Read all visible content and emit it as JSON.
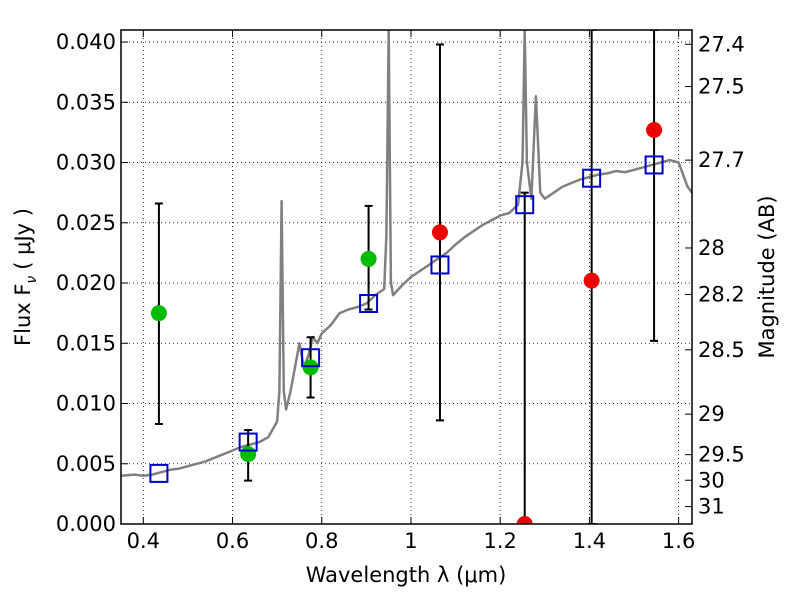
{
  "chart_data": {
    "type": "scatter",
    "xlabel": "Wavelength  λ (μm)",
    "ylabel": "Flux  F",
    "ylabel_sub": "ν",
    "ylabel_unit": "( μJy )",
    "y2label": "Magnitude (AB)",
    "xlim": [
      0.35,
      1.63
    ],
    "ylim": [
      0.0,
      0.041
    ],
    "grid": true,
    "x_ticks": [
      {
        "v": 0.4,
        "label": "0.4"
      },
      {
        "v": 0.6,
        "label": "0.6"
      },
      {
        "v": 0.8,
        "label": "0.8"
      },
      {
        "v": 1.0,
        "label": "1"
      },
      {
        "v": 1.2,
        "label": "1.2"
      },
      {
        "v": 1.4,
        "label": "1.4"
      },
      {
        "v": 1.6,
        "label": "1.6"
      }
    ],
    "y_ticks": [
      {
        "v": 0.0,
        "label": "0.000"
      },
      {
        "v": 0.005,
        "label": "0.005"
      },
      {
        "v": 0.01,
        "label": "0.010"
      },
      {
        "v": 0.015,
        "label": "0.015"
      },
      {
        "v": 0.02,
        "label": "0.020"
      },
      {
        "v": 0.025,
        "label": "0.025"
      },
      {
        "v": 0.03,
        "label": "0.030"
      },
      {
        "v": 0.035,
        "label": "0.035"
      },
      {
        "v": 0.04,
        "label": "0.040"
      }
    ],
    "mag_ticks": [
      {
        "mag": 27.4,
        "label": "27.4"
      },
      {
        "mag": 27.5,
        "label": "27.5"
      },
      {
        "mag": 27.7,
        "label": "27.7"
      },
      {
        "mag": 28.0,
        "label": "28"
      },
      {
        "mag": 28.2,
        "label": "28.2"
      },
      {
        "mag": 28.5,
        "label": "28.5"
      },
      {
        "mag": 29.0,
        "label": "29"
      },
      {
        "mag": 29.5,
        "label": "29.5"
      },
      {
        "mag": 30.0,
        "label": "30"
      },
      {
        "mag": 31.0,
        "label": "31"
      }
    ],
    "spectrum": {
      "color": "#808080",
      "points": [
        [
          0.35,
          0.004
        ],
        [
          0.38,
          0.0041
        ],
        [
          0.4,
          0.004
        ],
        [
          0.42,
          0.0041
        ],
        [
          0.44,
          0.0043
        ],
        [
          0.46,
          0.0045
        ],
        [
          0.48,
          0.0046
        ],
        [
          0.5,
          0.0048
        ],
        [
          0.52,
          0.005
        ],
        [
          0.54,
          0.0052
        ],
        [
          0.56,
          0.0055
        ],
        [
          0.58,
          0.0058
        ],
        [
          0.6,
          0.0061
        ],
        [
          0.62,
          0.0064
        ],
        [
          0.64,
          0.0066
        ],
        [
          0.66,
          0.0068
        ],
        [
          0.68,
          0.0072
        ],
        [
          0.7,
          0.0085
        ],
        [
          0.705,
          0.011
        ],
        [
          0.71,
          0.0268
        ],
        [
          0.715,
          0.011
        ],
        [
          0.72,
          0.0095
        ],
        [
          0.73,
          0.011
        ],
        [
          0.74,
          0.013
        ],
        [
          0.75,
          0.015
        ],
        [
          0.76,
          0.013
        ],
        [
          0.77,
          0.014
        ],
        [
          0.78,
          0.0155
        ],
        [
          0.79,
          0.015
        ],
        [
          0.8,
          0.0158
        ],
        [
          0.82,
          0.0165
        ],
        [
          0.84,
          0.0175
        ],
        [
          0.86,
          0.0178
        ],
        [
          0.88,
          0.018
        ],
        [
          0.9,
          0.0183
        ],
        [
          0.92,
          0.019
        ],
        [
          0.94,
          0.0195
        ],
        [
          0.945,
          0.024
        ],
        [
          0.95,
          0.041
        ],
        [
          0.955,
          0.02
        ],
        [
          0.96,
          0.019
        ],
        [
          0.98,
          0.0198
        ],
        [
          1.0,
          0.0205
        ],
        [
          1.02,
          0.021
        ],
        [
          1.04,
          0.0215
        ],
        [
          1.06,
          0.022
        ],
        [
          1.08,
          0.0225
        ],
        [
          1.1,
          0.0232
        ],
        [
          1.12,
          0.0238
        ],
        [
          1.14,
          0.0243
        ],
        [
          1.16,
          0.0248
        ],
        [
          1.18,
          0.0252
        ],
        [
          1.2,
          0.0256
        ],
        [
          1.22,
          0.0258
        ],
        [
          1.24,
          0.0265
        ],
        [
          1.25,
          0.03
        ],
        [
          1.255,
          0.041
        ],
        [
          1.26,
          0.03
        ],
        [
          1.27,
          0.027
        ],
        [
          1.28,
          0.0355
        ],
        [
          1.29,
          0.0275
        ],
        [
          1.3,
          0.027
        ],
        [
          1.32,
          0.0275
        ],
        [
          1.34,
          0.028
        ],
        [
          1.36,
          0.0283
        ],
        [
          1.38,
          0.0286
        ],
        [
          1.4,
          0.0288
        ],
        [
          1.42,
          0.029
        ],
        [
          1.44,
          0.0291
        ],
        [
          1.46,
          0.0293
        ],
        [
          1.48,
          0.0292
        ],
        [
          1.5,
          0.0294
        ],
        [
          1.52,
          0.0296
        ],
        [
          1.54,
          0.0298
        ],
        [
          1.56,
          0.03
        ],
        [
          1.58,
          0.0302
        ],
        [
          1.6,
          0.03
        ],
        [
          1.61,
          0.029
        ],
        [
          1.62,
          0.028
        ],
        [
          1.63,
          0.0275
        ]
      ]
    },
    "model_points": {
      "color": "#0000cc",
      "values": [
        [
          0.435,
          0.0042
        ],
        [
          0.635,
          0.0068
        ],
        [
          0.775,
          0.0138
        ],
        [
          0.905,
          0.0183
        ],
        [
          1.065,
          0.0215
        ],
        [
          1.255,
          0.0265
        ],
        [
          1.405,
          0.0287
        ],
        [
          1.545,
          0.0298
        ]
      ]
    },
    "observed_points": [
      {
        "x": 0.435,
        "y": 0.0175,
        "lo": 0.0083,
        "hi": 0.0266,
        "color": "#00bb00"
      },
      {
        "x": 0.635,
        "y": 0.0058,
        "lo": 0.0036,
        "hi": 0.0078,
        "color": "#00bb00"
      },
      {
        "x": 0.775,
        "y": 0.013,
        "lo": 0.0105,
        "hi": 0.0155,
        "color": "#00bb00"
      },
      {
        "x": 0.905,
        "y": 0.022,
        "lo": 0.0178,
        "hi": 0.0264,
        "color": "#00bb00"
      },
      {
        "x": 1.065,
        "y": 0.0242,
        "lo": 0.0086,
        "hi": 0.0398,
        "color": "#ee0000"
      },
      {
        "x": 1.255,
        "y": 0.0,
        "lo": 0.0,
        "hi": 0.0275,
        "color": "#ee0000"
      },
      {
        "x": 1.405,
        "y": 0.0202,
        "lo": 0.0,
        "hi": 0.041,
        "color": "#ee0000"
      },
      {
        "x": 1.545,
        "y": 0.0327,
        "lo": 0.0152,
        "hi": 0.041,
        "color": "#ee0000"
      }
    ]
  }
}
